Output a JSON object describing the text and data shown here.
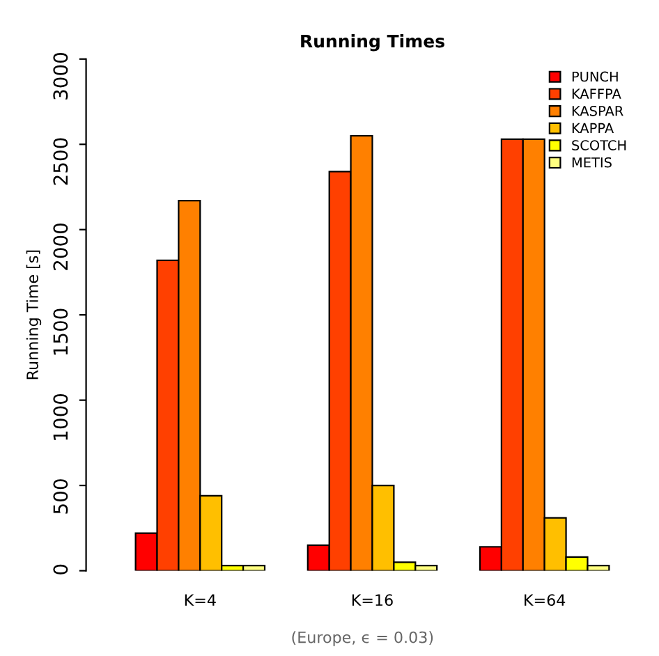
{
  "chart_data": {
    "type": "bar",
    "title": "Running Times",
    "ylabel": "Running Time [s]",
    "categories": [
      "K=4",
      "K=16",
      "K=64"
    ],
    "series": [
      {
        "name": "PUNCH",
        "color": "#ff0000",
        "values": [
          220,
          150,
          140
        ]
      },
      {
        "name": "KAFFPA",
        "color": "#ff4000",
        "values": [
          1820,
          2340,
          2530
        ]
      },
      {
        "name": "KASPAR",
        "color": "#ff8000",
        "values": [
          2170,
          2550,
          2530
        ]
      },
      {
        "name": "KAPPA",
        "color": "#ffbf00",
        "values": [
          440,
          500,
          310
        ]
      },
      {
        "name": "SCOTCH",
        "color": "#ffff00",
        "values": [
          30,
          50,
          80
        ]
      },
      {
        "name": "METIS",
        "color": "#ffff80",
        "values": [
          30,
          30,
          30
        ]
      }
    ],
    "ylim": [
      0,
      3000
    ],
    "yticks": [
      0,
      500,
      1000,
      1500,
      2000,
      2500,
      3000
    ],
    "legend": "top right",
    "grid": false,
    "annotations": [
      "(Europe, ϵ = 0.03)"
    ]
  }
}
